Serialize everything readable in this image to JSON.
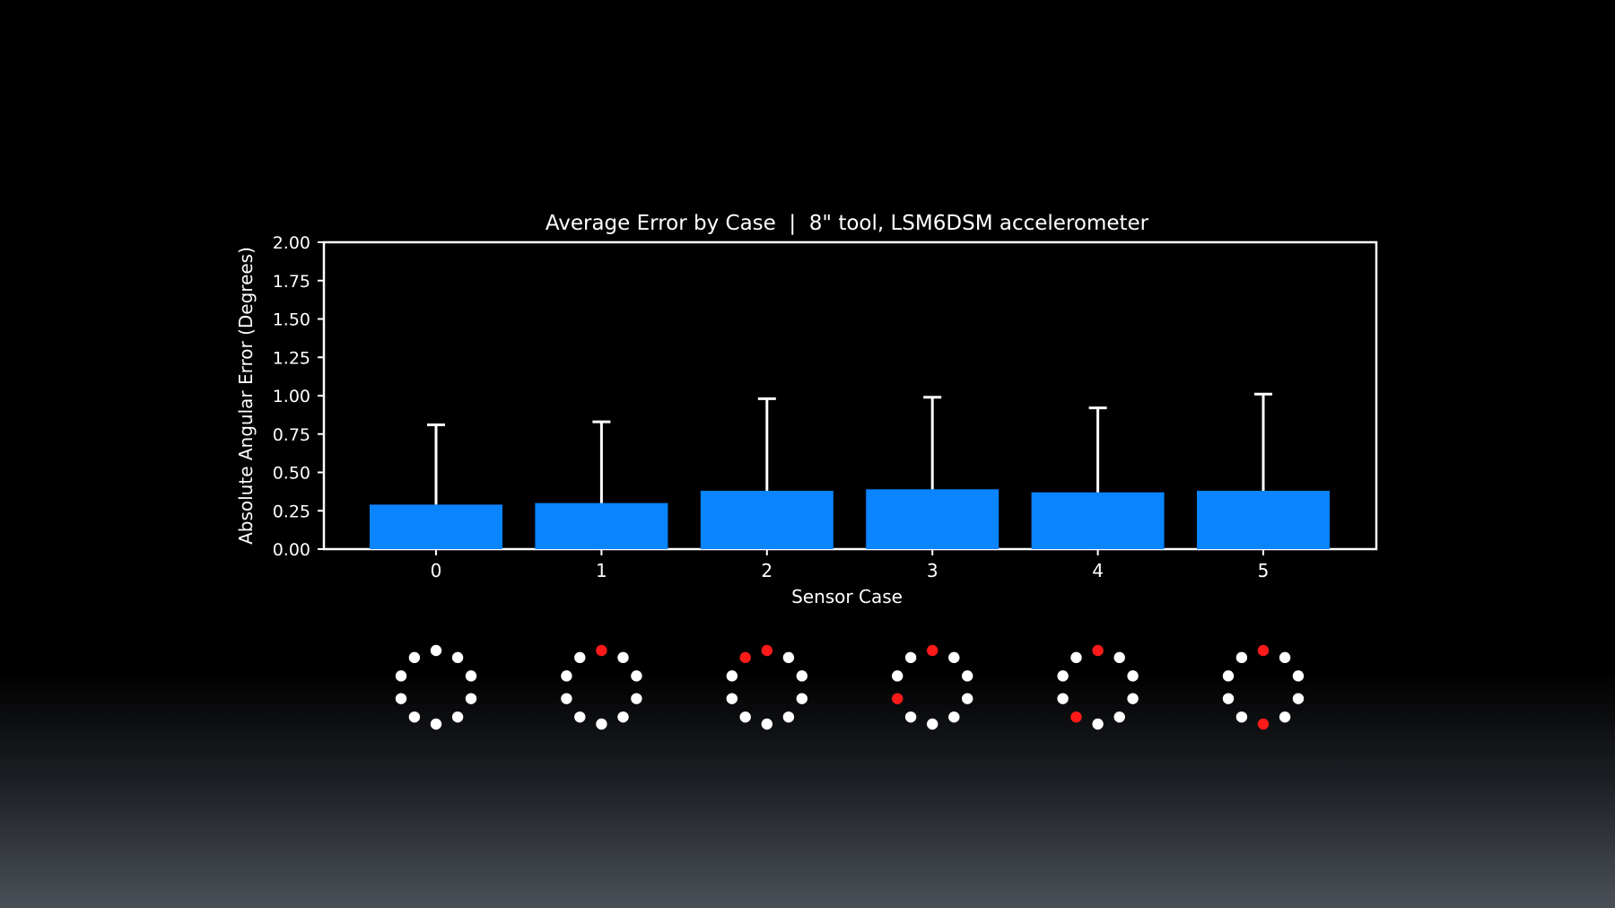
{
  "chart_data": {
    "type": "bar",
    "title": "Average Error by Case  |  8\" tool, LSM6DSM accelerometer",
    "xlabel": "Sensor Case",
    "ylabel": "Absolute Angular Error (Degrees)",
    "categories": [
      "0",
      "1",
      "2",
      "3",
      "4",
      "5"
    ],
    "values": [
      0.29,
      0.3,
      0.38,
      0.39,
      0.37,
      0.38
    ],
    "error_upper": [
      0.81,
      0.83,
      0.98,
      0.99,
      0.92,
      1.01
    ],
    "ylim": [
      0,
      2.0
    ],
    "yticks": [
      "0.00",
      "0.25",
      "0.50",
      "0.75",
      "1.00",
      "1.25",
      "1.50",
      "1.75",
      "2.00"
    ],
    "grid": false,
    "legend": "none",
    "colors": {
      "bar": "#0a84ff",
      "error_bar": "#ffffff",
      "axes": "#ffffff",
      "background": "#000000"
    }
  },
  "sensor_diagrams": {
    "points_per_ring": 10,
    "active_color": "#ff1a1a",
    "inactive_color": "#ffffff",
    "cases": [
      {
        "case": "0",
        "active": []
      },
      {
        "case": "1",
        "active": [
          0
        ]
      },
      {
        "case": "2",
        "active": [
          0,
          9
        ]
      },
      {
        "case": "3",
        "active": [
          0,
          7
        ]
      },
      {
        "case": "4",
        "active": [
          0,
          6
        ]
      },
      {
        "case": "5",
        "active": [
          0,
          5
        ]
      }
    ]
  }
}
